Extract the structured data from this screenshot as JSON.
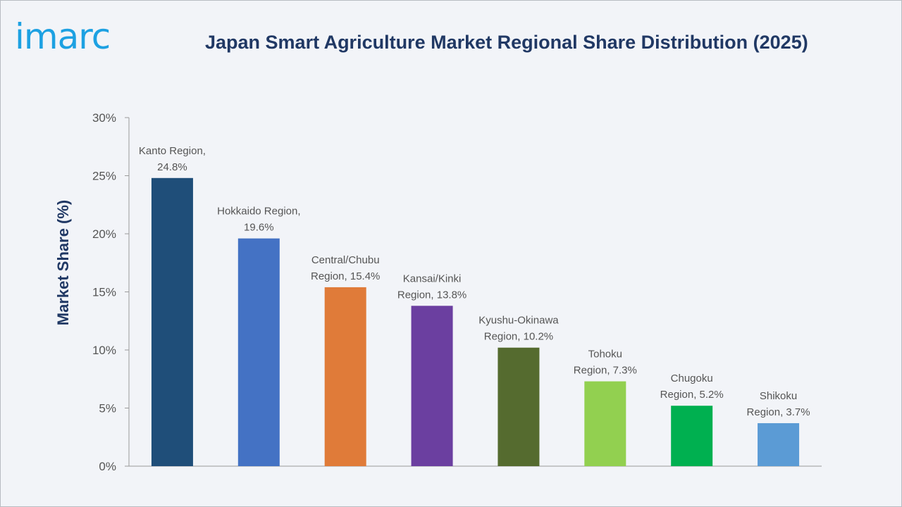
{
  "brand": {
    "logo_text": "imarc",
    "logo_color": "#1da1e2"
  },
  "chart_data": {
    "type": "bar",
    "title": "Japan Smart Agriculture Market Regional Share Distribution (2025)",
    "xlabel": "",
    "ylabel": "Market Share (%)",
    "ylim": [
      0,
      30
    ],
    "yticks": [
      0,
      5,
      10,
      15,
      20,
      25,
      30
    ],
    "ytick_labels": [
      "0%",
      "5%",
      "10%",
      "15%",
      "20%",
      "25%",
      "30%"
    ],
    "grid": false,
    "legend": "none",
    "categories": [
      "Kanto Region",
      "Hokkaido Region",
      "Central/Chubu Region",
      "Kansai/Kinki Region",
      "Kyushu-Okinawa Region",
      "Tohoku Region",
      "Chugoku Region",
      "Shikoku Region"
    ],
    "values": [
      24.8,
      19.6,
      15.4,
      13.8,
      10.2,
      7.3,
      5.2,
      3.7
    ],
    "data_labels": [
      [
        "Kanto Region,",
        "24.8%"
      ],
      [
        "Hokkaido Region,",
        "19.6%"
      ],
      [
        "Central/Chubu",
        "Region, 15.4%"
      ],
      [
        "Kansai/Kinki",
        "Region, 13.8%"
      ],
      [
        "Kyushu-Okinawa",
        "Region, 10.2%"
      ],
      [
        "Tohoku",
        "Region, 7.3%"
      ],
      [
        "Chugoku",
        "Region, 5.2%"
      ],
      [
        "Shikoku",
        "Region, 3.7%"
      ]
    ],
    "colors": [
      "#1f4e79",
      "#4472c4",
      "#e07b39",
      "#6b3fa0",
      "#556b2f",
      "#92d050",
      "#00b050",
      "#5b9bd5"
    ]
  }
}
